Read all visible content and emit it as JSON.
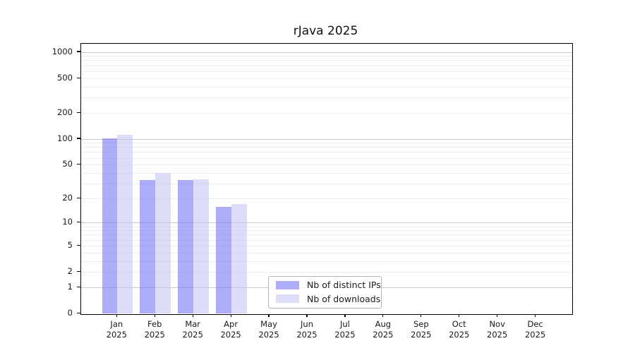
{
  "chart_data": {
    "type": "bar",
    "title": "rJava 2025",
    "categories": [
      "Jan 2025",
      "Feb 2025",
      "Mar 2025",
      "Apr 2025",
      "May 2025",
      "Jun 2025",
      "Jul 2025",
      "Aug 2025",
      "Sep 2025",
      "Oct 2025",
      "Nov 2025",
      "Dec 2025"
    ],
    "series": [
      {
        "name": "Nb of distinct IPs",
        "color": "rgba(125,125,245,0.63)",
        "values": [
          102,
          33,
          33,
          16,
          null,
          null,
          null,
          null,
          null,
          null,
          null,
          null
        ]
      },
      {
        "name": "Nb of downloads",
        "color": "rgba(199,199,247,0.60)",
        "values": [
          112,
          40,
          34,
          17,
          null,
          null,
          null,
          null,
          null,
          null,
          null,
          null
        ]
      }
    ],
    "xlabel": "",
    "ylabel": "",
    "y_scale": "log10(1+y)",
    "y_ticks": [
      0,
      1,
      2,
      5,
      10,
      20,
      50,
      100,
      200,
      500,
      1000
    ],
    "ylim": [
      0,
      1250
    ],
    "grid": {
      "major_values": [
        1,
        10,
        100,
        1000
      ],
      "minor_values": [
        2,
        3,
        4,
        5,
        6,
        7,
        8,
        9,
        20,
        30,
        40,
        50,
        60,
        70,
        80,
        90,
        200,
        300,
        400,
        500,
        600,
        700,
        800,
        900
      ],
      "major_color": "#c9c9c9",
      "minor_color": "#ededed"
    },
    "legend_position": "lower-center"
  },
  "colors": {
    "spine": "#000000",
    "tick_label": "#191919",
    "title": "#111111",
    "legend_border": "#b4b4b4"
  }
}
